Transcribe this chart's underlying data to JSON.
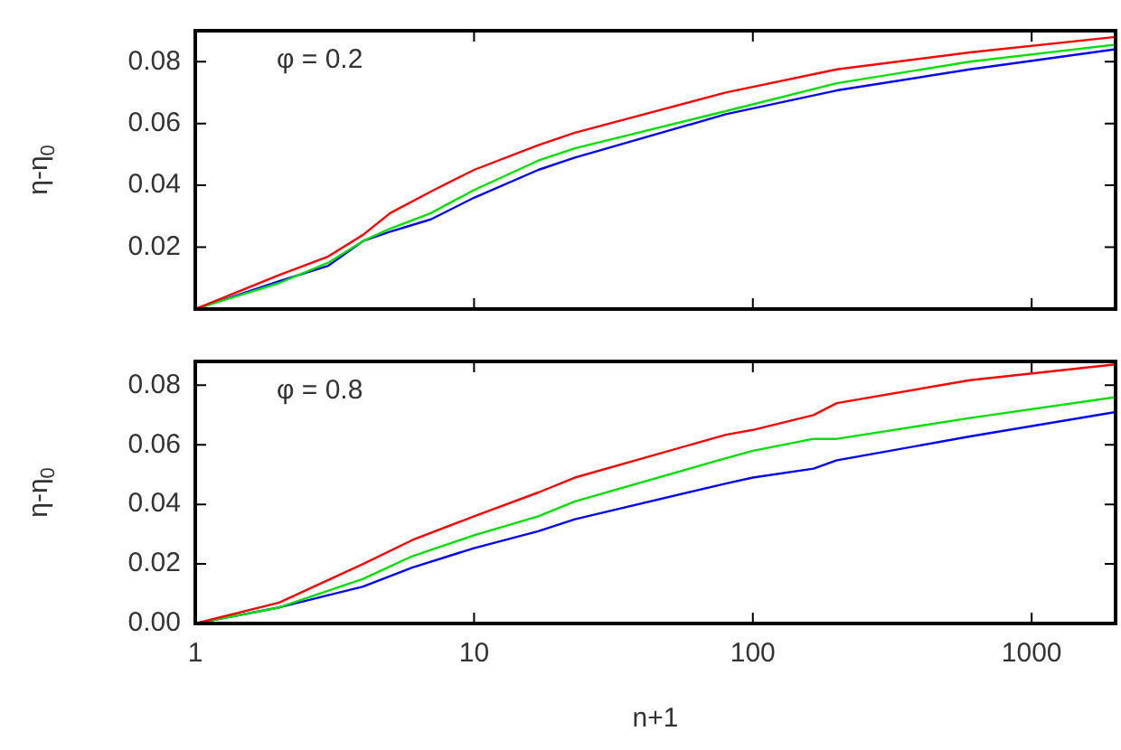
{
  "chart_data": [
    {
      "type": "line",
      "ylabel": "η-η$_{0}$",
      "annotations": [
        "φ = 0.2"
      ],
      "log": "x",
      "grid": false,
      "legend": false,
      "tick_labels": "y",
      "x": [
        1,
        2,
        3,
        4,
        5,
        7,
        10,
        17,
        23,
        80,
        200,
        600,
        2000
      ],
      "xlim": [
        1,
        2000
      ],
      "xticks": [
        1,
        10,
        100,
        1000
      ],
      "ylim": [
        0,
        0.09
      ],
      "yticks": [
        0.02,
        0.04,
        0.06,
        0.08
      ],
      "series": [
        {
          "color": "#ff0000",
          "values": [
            0,
            0.011,
            0.017,
            0.024,
            0.031,
            0.038,
            0.045,
            0.053,
            0.057,
            0.07,
            0.0775,
            0.083,
            0.088
          ]
        },
        {
          "color": "#00e000",
          "values": [
            0,
            0.0084,
            0.015,
            0.022,
            0.026,
            0.031,
            0.0385,
            0.048,
            0.052,
            0.064,
            0.073,
            0.08,
            0.0855
          ]
        },
        {
          "color": "#0000ff",
          "values": [
            0,
            0.009,
            0.014,
            0.022,
            0.025,
            0.029,
            0.036,
            0.045,
            0.049,
            0.063,
            0.0707,
            0.0775,
            0.084
          ]
        }
      ]
    },
    {
      "type": "line",
      "xlabel": "n+1",
      "ylabel": "η-η$_{0}$",
      "annotations": [
        "φ = 0.8"
      ],
      "log": "x",
      "grid": false,
      "legend": false,
      "x": [
        1,
        2,
        4,
        6,
        10,
        17,
        23,
        80,
        100,
        165,
        200,
        600,
        2000
      ],
      "xlim": [
        1,
        2000
      ],
      "xticks": [
        1,
        10,
        100,
        1000
      ],
      "ylim": [
        0,
        0.088
      ],
      "yticks": [
        {
          "value": 0,
          "label": "0.00"
        },
        0.02,
        0.04,
        0.06,
        0.08
      ],
      "series": [
        {
          "color": "#ff0000",
          "values": [
            0,
            0.007,
            0.02,
            0.028,
            0.036,
            0.044,
            0.049,
            0.0634,
            0.065,
            0.07,
            0.074,
            0.0817,
            0.087
          ]
        },
        {
          "color": "#00e000",
          "values": [
            0,
            0.0054,
            0.015,
            0.0226,
            0.0296,
            0.036,
            0.041,
            0.0555,
            0.058,
            0.062,
            0.062,
            0.069,
            0.076
          ]
        },
        {
          "color": "#0000ff",
          "values": [
            0,
            0.0054,
            0.0124,
            0.0188,
            0.0253,
            0.031,
            0.035,
            0.047,
            0.049,
            0.052,
            0.0548,
            0.0628,
            0.071
          ]
        }
      ]
    }
  ]
}
